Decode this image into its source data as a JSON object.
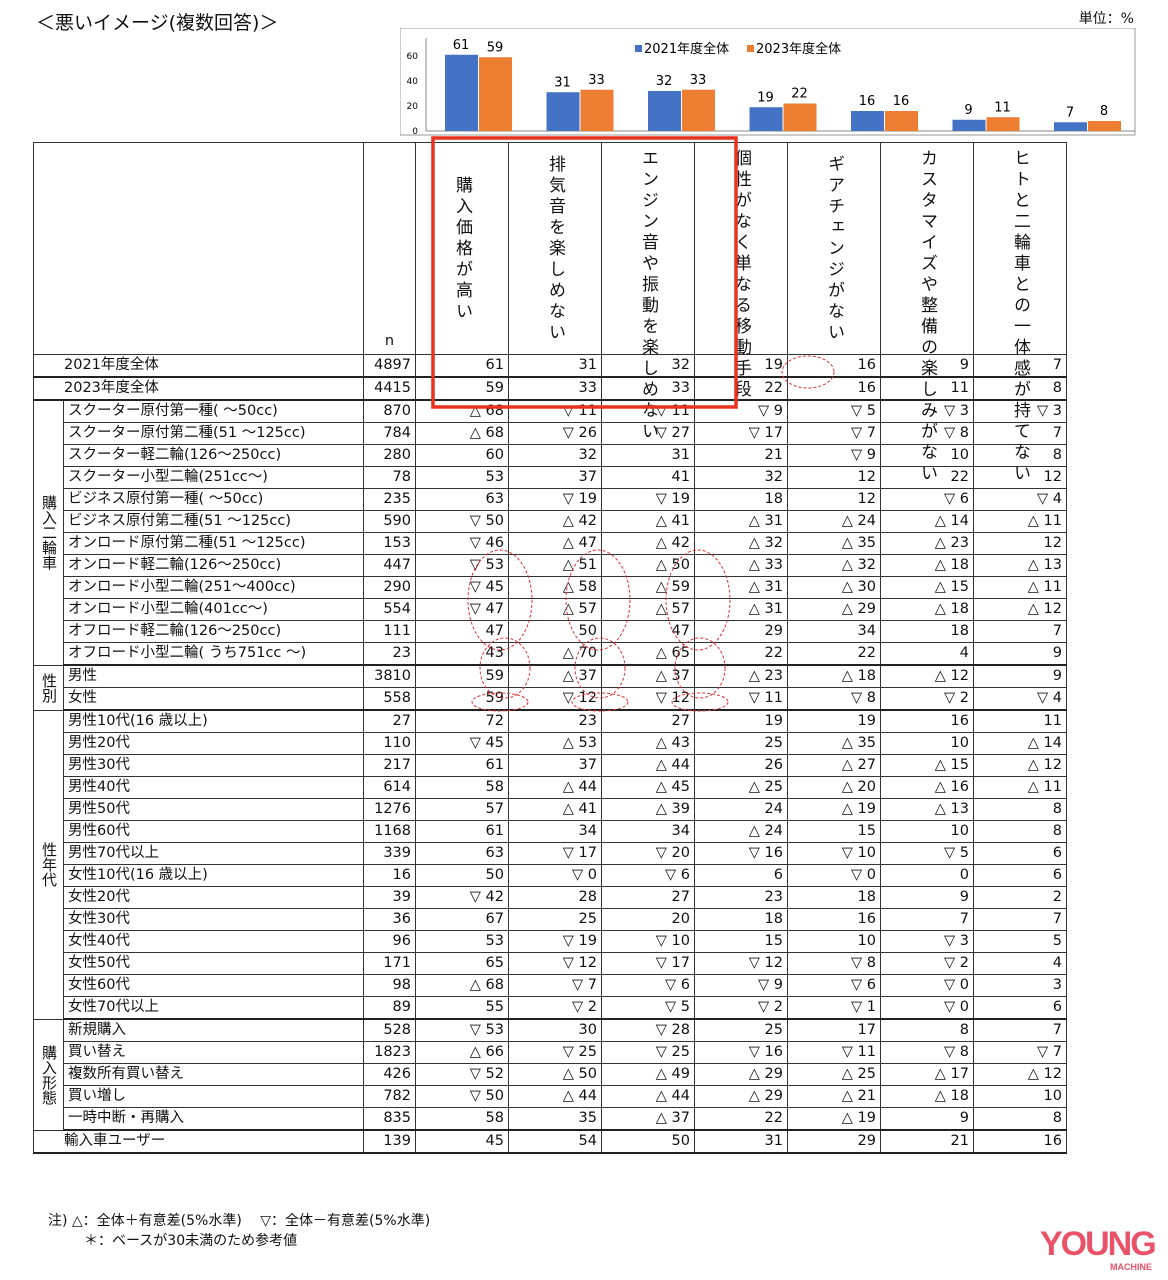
{
  "title": "＜悪いイメージ(複数回答)＞",
  "unit": "単位：%",
  "colors": {
    "s2021": "#4472c4",
    "s2023": "#ed7d31",
    "highlight": "#e8321e"
  },
  "chart_data": {
    "type": "bar",
    "categories": [
      "購入価格が高い",
      "排気音を楽しめない",
      "エンジン音や振動を楽しめない",
      "個性がなく単なる移動手段",
      "ギアチェンジがない",
      "カスタマイズや整備の楽しみがない",
      "ヒトと二輪車との一体感が持てない"
    ],
    "series": [
      {
        "name": "2021年度全体",
        "values": [
          61,
          31,
          32,
          19,
          16,
          9,
          7
        ]
      },
      {
        "name": "2023年度全体",
        "values": [
          59,
          33,
          33,
          22,
          16,
          11,
          8
        ]
      }
    ],
    "yticks": [
      0,
      20,
      40,
      60
    ],
    "ylim": [
      0,
      66
    ],
    "legend": "top-center",
    "grid": false
  },
  "table": {
    "n_header": "n",
    "columns": [
      "購入価格が高い",
      "排気音を楽しめない",
      "エンジン音や振動を楽しめない",
      "個性がなく単なる移動手段",
      "ギアチェンジがない",
      "カスタマイズや整備の楽しみがない",
      "ヒトと二輪車との一体感が持てない"
    ],
    "totals": [
      {
        "label": "2021年度全体",
        "n": "4897",
        "v": [
          "61",
          "31",
          "32",
          "19",
          "16",
          "9",
          "7"
        ]
      },
      {
        "label": "2023年度全体",
        "n": "4415",
        "v": [
          "59",
          "33",
          "33",
          "22",
          "16",
          "11",
          "8"
        ]
      }
    ],
    "groups": [
      {
        "name": "購入二輪車",
        "rows": [
          {
            "label": "スクーター原付第一種( ～50cc)",
            "n": "870",
            "v": [
              "△ 68",
              "▽ 11",
              "▽ 11",
              "▽ 9",
              "▽ 5",
              "▽ 3",
              "▽ 3"
            ]
          },
          {
            "label": "スクーター原付第二種(51 ～125cc)",
            "n": "784",
            "v": [
              "△ 68",
              "▽ 26",
              "▽ 27",
              "▽ 17",
              "▽ 7",
              "▽ 8",
              "7"
            ]
          },
          {
            "label": "スクーター軽二輪(126～250cc)",
            "n": "280",
            "v": [
              "60",
              "32",
              "31",
              "21",
              "▽ 9",
              "10",
              "8"
            ]
          },
          {
            "label": "スクーター小型二輪(251cc～)",
            "n": "78",
            "v": [
              "53",
              "37",
              "41",
              "32",
              "12",
              "22",
              "12"
            ]
          },
          {
            "label": "ビジネス原付第一種( ～50cc)",
            "n": "235",
            "v": [
              "63",
              "▽ 19",
              "▽ 19",
              "18",
              "12",
              "▽ 6",
              "▽ 4"
            ]
          },
          {
            "label": "ビジネス原付第二種(51 ～125cc)",
            "n": "590",
            "v": [
              "▽ 50",
              "△ 42",
              "△ 41",
              "△ 31",
              "△ 24",
              "△ 14",
              "△ 11"
            ]
          },
          {
            "label": "オンロード原付第二種(51 ～125cc)",
            "n": "153",
            "v": [
              "▽ 46",
              "△ 47",
              "△ 42",
              "△ 32",
              "△ 35",
              "△ 23",
              "12"
            ]
          },
          {
            "label": "オンロード軽二輪(126～250cc)",
            "n": "447",
            "v": [
              "▽ 53",
              "△ 51",
              "△ 50",
              "△ 33",
              "△ 32",
              "△ 18",
              "△ 13"
            ]
          },
          {
            "label": "オンロード小型二輪(251～400cc)",
            "n": "290",
            "v": [
              "▽ 45",
              "△ 58",
              "△ 59",
              "△ 31",
              "△ 30",
              "△ 15",
              "△ 11"
            ]
          },
          {
            "label": "オンロード小型二輪(401cc～)",
            "n": "554",
            "v": [
              "▽ 47",
              "△ 57",
              "△ 57",
              "△ 31",
              "△ 29",
              "△ 18",
              "△ 12"
            ]
          },
          {
            "label": "オフロード軽二輪(126～250cc)",
            "n": "111",
            "v": [
              "47",
              "50",
              "47",
              "29",
              "34",
              "18",
              "7"
            ]
          },
          {
            "label": "オフロード小型二輪( うち751cc ～)",
            "n": "23",
            "v": [
              "43",
              "△ 70",
              "△ 65",
              "22",
              "22",
              "4",
              "9"
            ]
          }
        ]
      },
      {
        "name": "性別",
        "rows": [
          {
            "label": "男性",
            "n": "3810",
            "v": [
              "59",
              "△ 37",
              "△ 37",
              "△ 23",
              "△ 18",
              "△ 12",
              "9"
            ]
          },
          {
            "label": "女性",
            "n": "558",
            "v": [
              "59",
              "▽ 12",
              "▽ 12",
              "▽ 11",
              "▽ 8",
              "▽ 2",
              "▽ 4"
            ]
          }
        ]
      },
      {
        "name": "性年代",
        "rows": [
          {
            "label": "男性10代(16 歳以上)",
            "n": "27",
            "v": [
              "72",
              "23",
              "27",
              "19",
              "19",
              "16",
              "11"
            ]
          },
          {
            "label": "男性20代",
            "n": "110",
            "v": [
              "▽ 45",
              "△ 53",
              "△ 43",
              "25",
              "△ 35",
              "10",
              "△ 14"
            ]
          },
          {
            "label": "男性30代",
            "n": "217",
            "v": [
              "61",
              "37",
              "△ 44",
              "26",
              "△ 27",
              "△ 15",
              "△ 12"
            ]
          },
          {
            "label": "男性40代",
            "n": "614",
            "v": [
              "58",
              "△ 44",
              "△ 45",
              "△ 25",
              "△ 20",
              "△ 16",
              "△ 11"
            ]
          },
          {
            "label": "男性50代",
            "n": "1276",
            "v": [
              "57",
              "△ 41",
              "△ 39",
              "24",
              "△ 19",
              "△ 13",
              "8"
            ]
          },
          {
            "label": "男性60代",
            "n": "1168",
            "v": [
              "61",
              "34",
              "34",
              "△ 24",
              "15",
              "10",
              "8"
            ]
          },
          {
            "label": "男性70代以上",
            "n": "339",
            "v": [
              "63",
              "▽ 17",
              "▽ 20",
              "▽ 16",
              "▽ 10",
              "▽ 5",
              "6"
            ]
          },
          {
            "label": "女性10代(16 歳以上)",
            "n": "16",
            "v": [
              "50",
              "▽ 0",
              "▽ 6",
              "6",
              "▽ 0",
              "0",
              "6"
            ]
          },
          {
            "label": "女性20代",
            "n": "39",
            "v": [
              "▽ 42",
              "28",
              "27",
              "23",
              "18",
              "9",
              "2"
            ]
          },
          {
            "label": "女性30代",
            "n": "36",
            "v": [
              "67",
              "25",
              "20",
              "18",
              "16",
              "7",
              "7"
            ]
          },
          {
            "label": "女性40代",
            "n": "96",
            "v": [
              "53",
              "▽ 19",
              "▽ 10",
              "15",
              "10",
              "▽ 3",
              "5"
            ]
          },
          {
            "label": "女性50代",
            "n": "171",
            "v": [
              "65",
              "▽ 12",
              "▽ 17",
              "▽ 12",
              "▽ 8",
              "▽ 2",
              "4"
            ]
          },
          {
            "label": "女性60代",
            "n": "98",
            "v": [
              "△ 68",
              "▽ 7",
              "▽ 6",
              "▽ 9",
              "▽ 6",
              "▽ 0",
              "3"
            ]
          },
          {
            "label": "女性70代以上",
            "n": "89",
            "v": [
              "55",
              "▽ 2",
              "▽ 5",
              "▽ 2",
              "▽ 1",
              "▽ 0",
              "6"
            ]
          }
        ]
      },
      {
        "name": "購入形態",
        "rows": [
          {
            "label": "新規購入",
            "n": "528",
            "v": [
              "▽ 53",
              "30",
              "▽ 28",
              "25",
              "17",
              "8",
              "7"
            ]
          },
          {
            "label": "買い替え",
            "n": "1823",
            "v": [
              "△ 66",
              "▽ 25",
              "▽ 25",
              "▽ 16",
              "▽ 11",
              "▽ 8",
              "▽ 7"
            ]
          },
          {
            "label": "複数所有買い替え",
            "n": "426",
            "v": [
              "▽ 52",
              "△ 50",
              "△ 49",
              "△ 29",
              "△ 25",
              "△ 17",
              "△ 12"
            ]
          },
          {
            "label": "買い増し",
            "n": "782",
            "v": [
              "▽ 50",
              "△ 44",
              "△ 44",
              "△ 29",
              "△ 21",
              "△ 18",
              "10"
            ]
          },
          {
            "label": "一時中断・再購入",
            "n": "835",
            "v": [
              "58",
              "35",
              "△ 37",
              "22",
              "△ 19",
              "9",
              "8"
            ]
          }
        ]
      }
    ],
    "import_row": {
      "label": "輸入車ユーザー",
      "n": "139",
      "v": [
        "45",
        "54",
        "50",
        "31",
        "29",
        "21",
        "16"
      ]
    }
  },
  "notes": [
    "注) △：全体＋有意差(5%水準)　 ▽：全体－有意差(5%水準)",
    "＊：ベースが30未満のため参考値"
  ],
  "logo": {
    "main": "YOUNG",
    "sub": "MACHINE"
  }
}
